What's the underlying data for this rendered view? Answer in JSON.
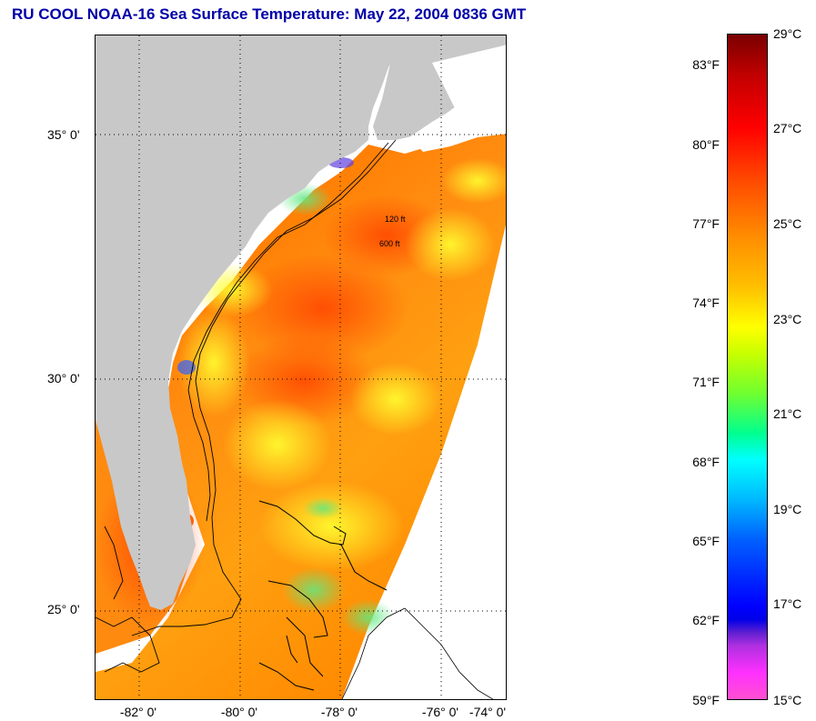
{
  "title": "RU COOL  NOAA-16  Sea Surface Temperature:  May 22, 2004 0836 GMT",
  "map": {
    "lat_labels": [
      "35° 0'",
      "30° 0'",
      "25° 0'"
    ],
    "lon_labels": [
      "-82° 0'",
      "-80° 0'",
      "-78° 0'",
      "-76° 0'",
      "-74° 0'"
    ],
    "isobath_labels": [
      "120 ft",
      "600 ft"
    ],
    "colors": {
      "land": "#c8c8c8",
      "no_data": "#ffffff",
      "grid": "#000000"
    }
  },
  "colorbar": {
    "fahrenheit_labels": [
      "83°F",
      "80°F",
      "77°F",
      "74°F",
      "71°F",
      "68°F",
      "65°F",
      "62°F",
      "59°F"
    ],
    "celsius_labels": [
      "29°C",
      "27°C",
      "25°C",
      "23°C",
      "21°C",
      "19°C",
      "17°C",
      "15°C"
    ],
    "range_c": [
      15,
      29
    ],
    "range_f": [
      59,
      84.2
    ]
  }
}
